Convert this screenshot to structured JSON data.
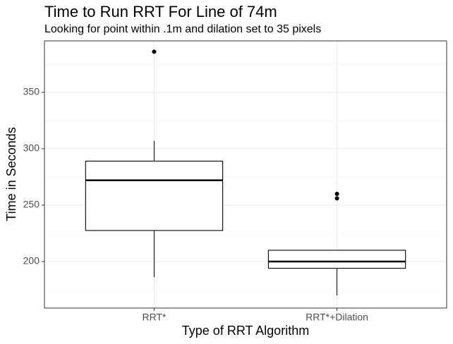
{
  "chart_data": {
    "type": "box",
    "title": "Time to Run RRT For Line of 74m",
    "subtitle": "Looking for point within .1m and dilation set to 35 pixels",
    "x_label": "Type of RRT Algorithm",
    "y_label": "Time in Seconds",
    "categories": [
      "RRT*",
      "RRT*+Dilation"
    ],
    "boxes": [
      {
        "low": 186,
        "q1": 227.5,
        "median": 272,
        "q3": 289,
        "high": 307,
        "outliers": [
          386
        ]
      },
      {
        "low": 170,
        "q1": 194,
        "median": 200,
        "q3": 210,
        "high": 210,
        "outliers": [
          260,
          256
        ]
      }
    ],
    "ylim": [
      158.75,
      395.6
    ],
    "yticks": [
      200,
      250,
      300,
      350
    ],
    "yminor": [
      175,
      225,
      275,
      325,
      375
    ],
    "grid": true,
    "color": "#000000"
  }
}
